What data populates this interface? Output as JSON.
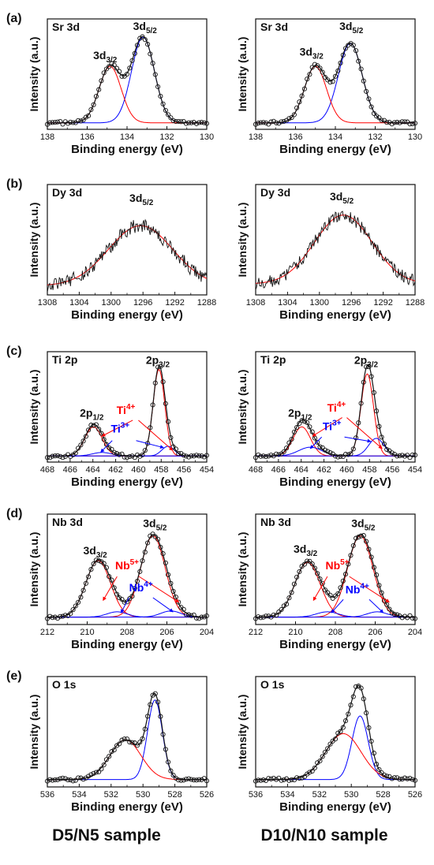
{
  "footer": {
    "left": "D5/N5 sample",
    "right": "D10/N10 sample"
  },
  "colors": {
    "fit": "#111111",
    "red": "#ff0000",
    "blue": "#0000ff",
    "markers": "#111111"
  },
  "chart_data": [
    {
      "type": "line",
      "row_label": "(a)",
      "panel_title": "Sr 3d",
      "sample": "D5/N5",
      "xlabel": "Binding energy (eV)",
      "ylabel": "Intensity (a.u.)",
      "xlim": [
        138,
        130
      ],
      "xticks": [
        "138",
        "136",
        "134",
        "132",
        "130"
      ],
      "ylim": [
        0,
        1
      ],
      "markers": true,
      "noisy": false,
      "baseline": 0.02,
      "peaks": [
        {
          "center": 133.2,
          "height": 0.97,
          "fwhm": 1.35,
          "color": "#0000ff"
        },
        {
          "center": 134.85,
          "height": 0.64,
          "fwhm": 1.3,
          "color": "#ff0000"
        }
      ],
      "annotations": [
        {
          "base": "3d",
          "sub": "5/2",
          "x": 133.1,
          "y": 1.07,
          "color": "#111111"
        },
        {
          "base": "3d",
          "sub": "3/2",
          "x": 135.1,
          "y": 0.74,
          "color": "#111111"
        }
      ],
      "arrows": []
    },
    {
      "type": "line",
      "row_label": "",
      "panel_title": "Sr 3d",
      "sample": "D10/N10",
      "xlabel": "Binding energy (eV)",
      "ylabel": "Intensity (a.u.)",
      "xlim": [
        138,
        130
      ],
      "xticks": [
        "138",
        "136",
        "134",
        "132",
        "130"
      ],
      "ylim": [
        0,
        1
      ],
      "markers": true,
      "noisy": false,
      "baseline": 0.02,
      "peaks": [
        {
          "center": 133.25,
          "height": 0.9,
          "fwhm": 1.4,
          "color": "#0000ff"
        },
        {
          "center": 135.0,
          "height": 0.64,
          "fwhm": 1.3,
          "color": "#ff0000"
        }
      ],
      "annotations": [
        {
          "base": "3d",
          "sub": "5/2",
          "x": 133.2,
          "y": 1.07,
          "color": "#111111"
        },
        {
          "base": "3d",
          "sub": "3/2",
          "x": 135.2,
          "y": 0.78,
          "color": "#111111"
        }
      ],
      "arrows": []
    },
    {
      "type": "line",
      "row_label": "(b)",
      "panel_title": "Dy 3d",
      "sample": "D5/N5",
      "xlabel": "Binding energy (eV)",
      "ylabel": "Intensity (a.u.)",
      "xlim": [
        1308,
        1288
      ],
      "xticks": [
        "1308",
        "1304",
        "1300",
        "1296",
        "1292",
        "1288"
      ],
      "ylim": [
        0,
        1
      ],
      "markers": false,
      "noisy": true,
      "noise": 0.08,
      "baseline": 0.05,
      "peaks": [
        {
          "center": 1296.3,
          "height": 0.68,
          "fwhm": 9.5,
          "color": "#ff0000"
        }
      ],
      "annotations": [
        {
          "base": "3d",
          "sub": "5/2",
          "x": 1296.2,
          "y": 1.0,
          "color": "#111111"
        }
      ],
      "arrows": []
    },
    {
      "type": "line",
      "row_label": "",
      "panel_title": "Dy 3d",
      "sample": "D10/N10",
      "xlabel": "Binding energy (eV)",
      "ylabel": "Intensity (a.u.)",
      "xlim": [
        1308,
        1288
      ],
      "xticks": [
        "1308",
        "1304",
        "1300",
        "1296",
        "1292",
        "1288"
      ],
      "ylim": [
        0,
        1
      ],
      "markers": false,
      "noisy": true,
      "noise": 0.07,
      "baseline": 0.07,
      "peaks": [
        {
          "center": 1297.0,
          "height": 0.78,
          "fwhm": 8.5,
          "color": "#ff0000"
        }
      ],
      "annotations": [
        {
          "base": "3d",
          "sub": "5/2",
          "x": 1297.2,
          "y": 1.02,
          "color": "#111111"
        }
      ],
      "arrows": []
    },
    {
      "type": "line",
      "row_label": "(c)",
      "panel_title": "Ti 2p",
      "sample": "D5/N5",
      "xlabel": "Binding energy (eV)",
      "ylabel": "Intensity (a.u.)",
      "xlim": [
        468,
        454
      ],
      "xticks": [
        "468",
        "466",
        "464",
        "462",
        "460",
        "458",
        "456",
        "454"
      ],
      "ylim": [
        0,
        1
      ],
      "markers": true,
      "noisy": false,
      "baseline": 0.015,
      "peaks": [
        {
          "center": 458.2,
          "height": 0.98,
          "fwhm": 1.2,
          "color": "#ff0000"
        },
        {
          "center": 463.95,
          "height": 0.33,
          "fwhm": 1.8,
          "color": "#ff0000"
        },
        {
          "center": 457.4,
          "height": 0.11,
          "fwhm": 1.3,
          "color": "#0000ff"
        },
        {
          "center": 463.2,
          "height": 0.04,
          "fwhm": 2.0,
          "color": "#0000ff"
        }
      ],
      "annotations": [
        {
          "base": "2p",
          "sub": "3/2",
          "x": 458.3,
          "y": 1.06,
          "color": "#111111"
        },
        {
          "base": "2p",
          "sub": "1/2",
          "x": 464.1,
          "y": 0.46,
          "color": "#111111"
        },
        {
          "base": "Ti",
          "sup": "4+",
          "x": 461.1,
          "y": 0.49,
          "color": "#ff0000"
        },
        {
          "base": "Ti",
          "sup": "3+",
          "x": 461.6,
          "y": 0.28,
          "color": "#0000ff"
        }
      ],
      "arrows": [
        {
          "color": "#ff0000",
          "from": [
            460.5,
            0.42
          ],
          "to": [
            463.2,
            0.24
          ]
        },
        {
          "color": "#ff0000",
          "from": [
            460.0,
            0.42
          ],
          "to": [
            457.0,
            0.08
          ]
        },
        {
          "color": "#0000ff",
          "from": [
            462.3,
            0.19
          ],
          "to": [
            463.3,
            0.06
          ]
        },
        {
          "color": "#0000ff",
          "from": [
            460.2,
            0.19
          ],
          "to": [
            457.8,
            0.11
          ]
        }
      ]
    },
    {
      "type": "line",
      "row_label": "",
      "panel_title": "Ti 2p",
      "sample": "D10/N10",
      "xlabel": "Binding energy (eV)",
      "ylabel": "Intensity (a.u.)",
      "xlim": [
        468,
        454
      ],
      "xticks": [
        "468",
        "466",
        "464",
        "462",
        "460",
        "458",
        "456",
        "454"
      ],
      "ylim": [
        0,
        1
      ],
      "markers": true,
      "noisy": false,
      "baseline": 0.015,
      "peaks": [
        {
          "center": 458.2,
          "height": 0.93,
          "fwhm": 1.3,
          "color": "#ff0000"
        },
        {
          "center": 463.95,
          "height": 0.33,
          "fwhm": 1.8,
          "color": "#ff0000"
        },
        {
          "center": 457.4,
          "height": 0.2,
          "fwhm": 1.6,
          "color": "#0000ff"
        },
        {
          "center": 463.2,
          "height": 0.1,
          "fwhm": 2.4,
          "color": "#0000ff"
        }
      ],
      "annotations": [
        {
          "base": "2p",
          "sub": "3/2",
          "x": 458.3,
          "y": 1.06,
          "color": "#111111"
        },
        {
          "base": "2p",
          "sub": "1/2",
          "x": 464.1,
          "y": 0.46,
          "color": "#111111"
        },
        {
          "base": "Ti",
          "sup": "4+",
          "x": 460.9,
          "y": 0.52,
          "color": "#ff0000"
        },
        {
          "base": "Ti",
          "sup": "3+",
          "x": 461.3,
          "y": 0.31,
          "color": "#0000ff"
        }
      ],
      "arrows": [
        {
          "color": "#ff0000",
          "from": [
            460.4,
            0.45
          ],
          "to": [
            463.0,
            0.24
          ]
        },
        {
          "color": "#ff0000",
          "from": [
            460.0,
            0.45
          ],
          "to": [
            456.9,
            0.1
          ]
        },
        {
          "color": "#0000ff",
          "from": [
            462.2,
            0.23
          ],
          "to": [
            463.2,
            0.1
          ]
        },
        {
          "color": "#0000ff",
          "from": [
            460.2,
            0.23
          ],
          "to": [
            457.9,
            0.18
          ]
        }
      ]
    },
    {
      "type": "line",
      "row_label": "(d)",
      "panel_title": "Nb 3d",
      "sample": "D5/N5",
      "xlabel": "Binding energy (eV)",
      "ylabel": "Intensity (a.u.)",
      "xlim": [
        212,
        204
      ],
      "xticks": [
        "212",
        "210",
        "208",
        "206",
        "204"
      ],
      "ylim": [
        0,
        1
      ],
      "markers": true,
      "noisy": false,
      "baseline": 0.03,
      "peaks": [
        {
          "center": 206.7,
          "height": 0.92,
          "fwhm": 1.45,
          "color": "#ff0000"
        },
        {
          "center": 209.45,
          "height": 0.64,
          "fwhm": 1.45,
          "color": "#ff0000"
        },
        {
          "center": 205.8,
          "height": 0.07,
          "fwhm": 1.2,
          "color": "#0000ff"
        },
        {
          "center": 208.5,
          "height": 0.06,
          "fwhm": 1.2,
          "color": "#0000ff"
        }
      ],
      "annotations": [
        {
          "base": "3d",
          "sub": "5/2",
          "x": 206.6,
          "y": 1.05,
          "color": "#111111"
        },
        {
          "base": "3d",
          "sub": "3/2",
          "x": 209.6,
          "y": 0.74,
          "color": "#111111"
        },
        {
          "base": "Nb",
          "sup": "5+",
          "x": 208.0,
          "y": 0.57,
          "color": "#ff0000"
        },
        {
          "base": "Nb",
          "sup": "4+",
          "x": 207.3,
          "y": 0.32,
          "color": "#0000ff"
        }
      ],
      "arrows": [
        {
          "color": "#ff0000",
          "from": [
            208.5,
            0.49
          ],
          "to": [
            209.2,
            0.22
          ]
        },
        {
          "color": "#ff0000",
          "from": [
            207.4,
            0.49
          ],
          "to": [
            205.4,
            0.2
          ]
        },
        {
          "color": "#0000ff",
          "from": [
            207.9,
            0.25
          ],
          "to": [
            208.3,
            0.08
          ]
        },
        {
          "color": "#0000ff",
          "from": [
            206.7,
            0.25
          ],
          "to": [
            205.7,
            0.09
          ]
        }
      ]
    },
    {
      "type": "line",
      "row_label": "",
      "panel_title": "Nb 3d",
      "sample": "D10/N10",
      "xlabel": "Binding energy (eV)",
      "ylabel": "Intensity (a.u.)",
      "xlim": [
        212,
        204
      ],
      "xticks": [
        "212",
        "210",
        "208",
        "206",
        "204"
      ],
      "ylim": [
        0,
        1
      ],
      "markers": true,
      "noisy": false,
      "baseline": 0.03,
      "peaks": [
        {
          "center": 206.75,
          "height": 0.92,
          "fwhm": 1.5,
          "color": "#ff0000"
        },
        {
          "center": 209.4,
          "height": 0.62,
          "fwhm": 1.5,
          "color": "#ff0000"
        },
        {
          "center": 205.9,
          "height": 0.06,
          "fwhm": 1.2,
          "color": "#0000ff"
        },
        {
          "center": 208.4,
          "height": 0.06,
          "fwhm": 1.3,
          "color": "#0000ff"
        }
      ],
      "annotations": [
        {
          "base": "3d",
          "sub": "5/2",
          "x": 206.6,
          "y": 1.05,
          "color": "#111111"
        },
        {
          "base": "3d",
          "sub": "3/2",
          "x": 209.5,
          "y": 0.76,
          "color": "#111111"
        },
        {
          "base": "Nb",
          "sup": "5+",
          "x": 207.9,
          "y": 0.57,
          "color": "#ff0000"
        },
        {
          "base": "Nb",
          "sup": "4+",
          "x": 206.9,
          "y": 0.3,
          "color": "#0000ff"
        }
      ],
      "arrows": [
        {
          "color": "#ff0000",
          "from": [
            208.4,
            0.49
          ],
          "to": [
            209.1,
            0.22
          ]
        },
        {
          "color": "#ff0000",
          "from": [
            207.3,
            0.49
          ],
          "to": [
            205.3,
            0.2
          ]
        },
        {
          "color": "#0000ff",
          "from": [
            207.6,
            0.23
          ],
          "to": [
            208.2,
            0.08
          ]
        },
        {
          "color": "#0000ff",
          "from": [
            206.3,
            0.23
          ],
          "to": [
            205.6,
            0.08
          ]
        }
      ]
    },
    {
      "type": "line",
      "row_label": "(e)",
      "panel_title": "O 1s",
      "sample": "D5/N5",
      "xlabel": "Binding energy (eV)",
      "ylabel": "Intensity (a.u.)",
      "xlim": [
        536,
        526
      ],
      "xticks": [
        "536",
        "534",
        "532",
        "530",
        "528",
        "526"
      ],
      "ylim": [
        0,
        1
      ],
      "markers": true,
      "noisy": false,
      "baseline": 0.03,
      "peaks": [
        {
          "center": 529.25,
          "height": 0.9,
          "fwhm": 1.1,
          "color": "#0000ff"
        },
        {
          "center": 531.1,
          "height": 0.45,
          "fwhm": 2.3,
          "color": "#ff0000"
        }
      ],
      "annotations": [],
      "arrows": []
    },
    {
      "type": "line",
      "row_label": "",
      "panel_title": "O 1s",
      "sample": "D10/N10",
      "xlabel": "Binding energy (eV)",
      "ylabel": "Intensity (a.u.)",
      "xlim": [
        536,
        526
      ],
      "xticks": [
        "536",
        "534",
        "532",
        "530",
        "528",
        "526"
      ],
      "ylim": [
        0,
        1
      ],
      "markers": true,
      "noisy": false,
      "baseline": 0.03,
      "peaks": [
        {
          "center": 529.45,
          "height": 0.72,
          "fwhm": 1.2,
          "color": "#0000ff"
        },
        {
          "center": 530.5,
          "height": 0.52,
          "fwhm": 2.6,
          "color": "#ff0000"
        }
      ],
      "annotations": [],
      "arrows": []
    }
  ]
}
